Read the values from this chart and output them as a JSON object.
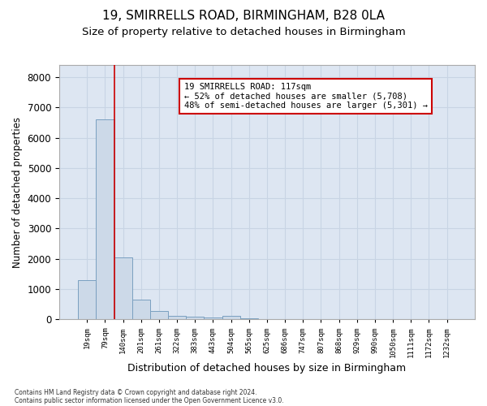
{
  "title1": "19, SMIRRELLS ROAD, BIRMINGHAM, B28 0LA",
  "title2": "Size of property relative to detached houses in Birmingham",
  "xlabel": "Distribution of detached houses by size in Birmingham",
  "ylabel": "Number of detached properties",
  "footer1": "Contains HM Land Registry data © Crown copyright and database right 2024.",
  "footer2": "Contains public sector information licensed under the Open Government Licence v3.0.",
  "categories": [
    "19sqm",
    "79sqm",
    "140sqm",
    "201sqm",
    "261sqm",
    "322sqm",
    "383sqm",
    "443sqm",
    "504sqm",
    "565sqm",
    "625sqm",
    "686sqm",
    "747sqm",
    "807sqm",
    "868sqm",
    "929sqm",
    "990sqm",
    "1050sqm",
    "1111sqm",
    "1172sqm",
    "1232sqm"
  ],
  "values": [
    1300,
    6600,
    2050,
    650,
    280,
    120,
    80,
    70,
    110,
    50,
    0,
    0,
    0,
    0,
    0,
    0,
    0,
    0,
    0,
    0,
    0
  ],
  "bar_color": "#ccd9e8",
  "bar_edge_color": "#7aa0c0",
  "property_line_x": 1.5,
  "property_line_color": "#cc0000",
  "annotation_text": "19 SMIRRELLS ROAD: 117sqm\n← 52% of detached houses are smaller (5,708)\n48% of semi-detached houses are larger (5,301) →",
  "annotation_box_color": "#ffffff",
  "annotation_box_edge": "#cc0000",
  "ylim": [
    0,
    8400
  ],
  "yticks": [
    0,
    1000,
    2000,
    3000,
    4000,
    5000,
    6000,
    7000,
    8000
  ],
  "grid_color": "#c8d4e4",
  "background_color": "#dde6f2",
  "title1_fontsize": 11,
  "title2_fontsize": 9.5,
  "xlabel_fontsize": 9,
  "ylabel_fontsize": 8.5,
  "annotation_fontsize": 7.5
}
